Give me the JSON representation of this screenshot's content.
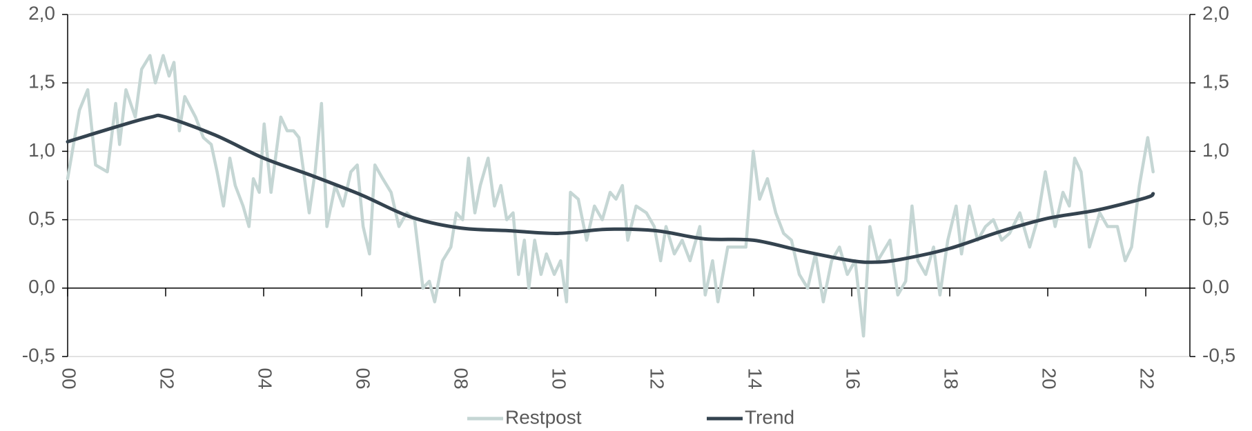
{
  "chart_data": {
    "type": "line",
    "xlim": [
      2000,
      2022.9
    ],
    "xticks": [
      {
        "value": 2000,
        "label": "00"
      },
      {
        "value": 2002,
        "label": "02"
      },
      {
        "value": 2004,
        "label": "04"
      },
      {
        "value": 2006,
        "label": "06"
      },
      {
        "value": 2008,
        "label": "08"
      },
      {
        "value": 2010,
        "label": "10"
      },
      {
        "value": 2012,
        "label": "12"
      },
      {
        "value": 2014,
        "label": "14"
      },
      {
        "value": 2016,
        "label": "16"
      },
      {
        "value": 2018,
        "label": "18"
      },
      {
        "value": 2020,
        "label": "20"
      },
      {
        "value": 2022,
        "label": "22"
      }
    ],
    "ylim": [
      -0.5,
      2.0
    ],
    "yticks": [
      {
        "value": -0.5,
        "label": "-0,5"
      },
      {
        "value": 0,
        "label": "0,0"
      },
      {
        "value": 0.5,
        "label": "0,5"
      },
      {
        "value": 1.0,
        "label": "1,0"
      },
      {
        "value": 1.5,
        "label": "1,5"
      },
      {
        "value": 2.0,
        "label": "2,0"
      }
    ],
    "y2lim": [
      -0.5,
      2.0
    ],
    "y2ticks": [
      {
        "value": -0.5,
        "label": "-0,5"
      },
      {
        "value": 0,
        "label": "0,0"
      },
      {
        "value": 0.5,
        "label": "0,5"
      },
      {
        "value": 1.0,
        "label": "1,0"
      },
      {
        "value": 1.5,
        "label": "1,5"
      },
      {
        "value": 2.0,
        "label": "2,0"
      }
    ],
    "grid": true,
    "legend": "bottom",
    "series": [
      {
        "name": "Restpost",
        "color": "#c5d6d4",
        "x": [
          2000,
          2000.24,
          2000.41,
          2000.57,
          2000.81,
          2000.98,
          2001.06,
          2001.19,
          2001.38,
          2001.51,
          2001.68,
          2001.79,
          2001.95,
          2002.07,
          2002.17,
          2002.28,
          2002.39,
          2002.61,
          2002.77,
          2002.93,
          2003.05,
          2003.18,
          2003.31,
          2003.42,
          2003.58,
          2003.7,
          2003.79,
          2003.91,
          2004.01,
          2004.15,
          2004.35,
          2004.48,
          2004.61,
          2004.72,
          2004.93,
          2005.05,
          2005.18,
          2005.29,
          2005.46,
          2005.62,
          2005.78,
          2005.91,
          2006.03,
          2006.16,
          2006.27,
          2006.43,
          2006.6,
          2006.76,
          2006.92,
          2007.08,
          2007.25,
          2007.38,
          2007.49,
          2007.65,
          2007.82,
          2007.93,
          2008.06,
          2008.18,
          2008.31,
          2008.42,
          2008.58,
          2008.71,
          2008.84,
          2008.96,
          2009.09,
          2009.2,
          2009.32,
          2009.41,
          2009.53,
          2009.66,
          2009.77,
          2009.93,
          2010.06,
          2010.18,
          2010.26,
          2010.42,
          2010.59,
          2010.75,
          2010.91,
          2011.07,
          2011.19,
          2011.32,
          2011.43,
          2011.6,
          2011.81,
          2011.97,
          2012.1,
          2012.21,
          2012.38,
          2012.54,
          2012.7,
          2012.9,
          2013.01,
          2013.16,
          2013.27,
          2013.47,
          2013.68,
          2013.84,
          2013.99,
          2014.12,
          2014.28,
          2014.45,
          2014.61,
          2014.77,
          2014.93,
          2015.1,
          2015.26,
          2015.42,
          2015.59,
          2015.75,
          2015.91,
          2016.07,
          2016.24,
          2016.37,
          2016.53,
          2016.78,
          2016.94,
          2017.1,
          2017.23,
          2017.35,
          2017.51,
          2017.67,
          2017.8,
          2017.96,
          2018.13,
          2018.24,
          2018.4,
          2018.57,
          2018.73,
          2018.89,
          2019.06,
          2019.22,
          2019.43,
          2019.63,
          2019.79,
          2019.95,
          2020.15,
          2020.31,
          2020.44,
          2020.55,
          2020.68,
          2020.85,
          2021.06,
          2021.22,
          2021.42,
          2021.58,
          2021.71,
          2021.87,
          2022.04,
          2022.15
        ],
        "values": [
          0.8,
          1.3,
          1.45,
          0.9,
          0.85,
          1.35,
          1.05,
          1.45,
          1.25,
          1.6,
          1.7,
          1.5,
          1.7,
          1.55,
          1.65,
          1.15,
          1.4,
          1.25,
          1.1,
          1.05,
          0.85,
          0.6,
          0.95,
          0.75,
          0.6,
          0.45,
          0.8,
          0.7,
          1.2,
          0.7,
          1.25,
          1.15,
          1.15,
          1.1,
          0.55,
          0.85,
          1.35,
          0.45,
          0.75,
          0.6,
          0.85,
          0.9,
          0.45,
          0.25,
          0.9,
          0.8,
          0.7,
          0.45,
          0.55,
          0.5,
          0.0,
          0.05,
          -0.1,
          0.2,
          0.3,
          0.55,
          0.5,
          0.95,
          0.55,
          0.75,
          0.95,
          0.6,
          0.75,
          0.5,
          0.55,
          0.1,
          0.35,
          0.0,
          0.35,
          0.1,
          0.25,
          0.1,
          0.2,
          -0.1,
          0.7,
          0.65,
          0.35,
          0.6,
          0.5,
          0.7,
          0.65,
          0.75,
          0.35,
          0.6,
          0.55,
          0.45,
          0.2,
          0.45,
          0.25,
          0.35,
          0.2,
          0.45,
          -0.05,
          0.2,
          -0.1,
          0.3,
          0.3,
          0.3,
          1.0,
          0.65,
          0.8,
          0.55,
          0.4,
          0.35,
          0.1,
          0.0,
          0.25,
          -0.1,
          0.2,
          0.3,
          0.1,
          0.2,
          -0.35,
          0.45,
          0.2,
          0.35,
          -0.05,
          0.05,
          0.6,
          0.2,
          0.1,
          0.3,
          -0.05,
          0.35,
          0.6,
          0.25,
          0.6,
          0.35,
          0.45,
          0.5,
          0.35,
          0.4,
          0.55,
          0.3,
          0.5,
          0.85,
          0.45,
          0.7,
          0.6,
          0.95,
          0.85,
          0.3,
          0.55,
          0.45,
          0.45,
          0.2,
          0.3,
          0.75,
          1.1,
          0.85
        ]
      },
      {
        "name": "Trend",
        "color": "#34434f",
        "x": [
          2000,
          2001,
          2001.7,
          2002,
          2003,
          2004,
          2005,
          2006,
          2007,
          2008,
          2009,
          2010,
          2011,
          2012,
          2013,
          2014,
          2015,
          2016,
          2016.5,
          2017,
          2018,
          2019,
          2020,
          2021,
          2022,
          2022.15
        ],
        "values": [
          1.07,
          1.18,
          1.25,
          1.25,
          1.12,
          0.95,
          0.82,
          0.68,
          0.52,
          0.44,
          0.42,
          0.4,
          0.43,
          0.42,
          0.36,
          0.35,
          0.27,
          0.2,
          0.19,
          0.21,
          0.29,
          0.41,
          0.51,
          0.57,
          0.66,
          0.69
        ]
      }
    ]
  }
}
